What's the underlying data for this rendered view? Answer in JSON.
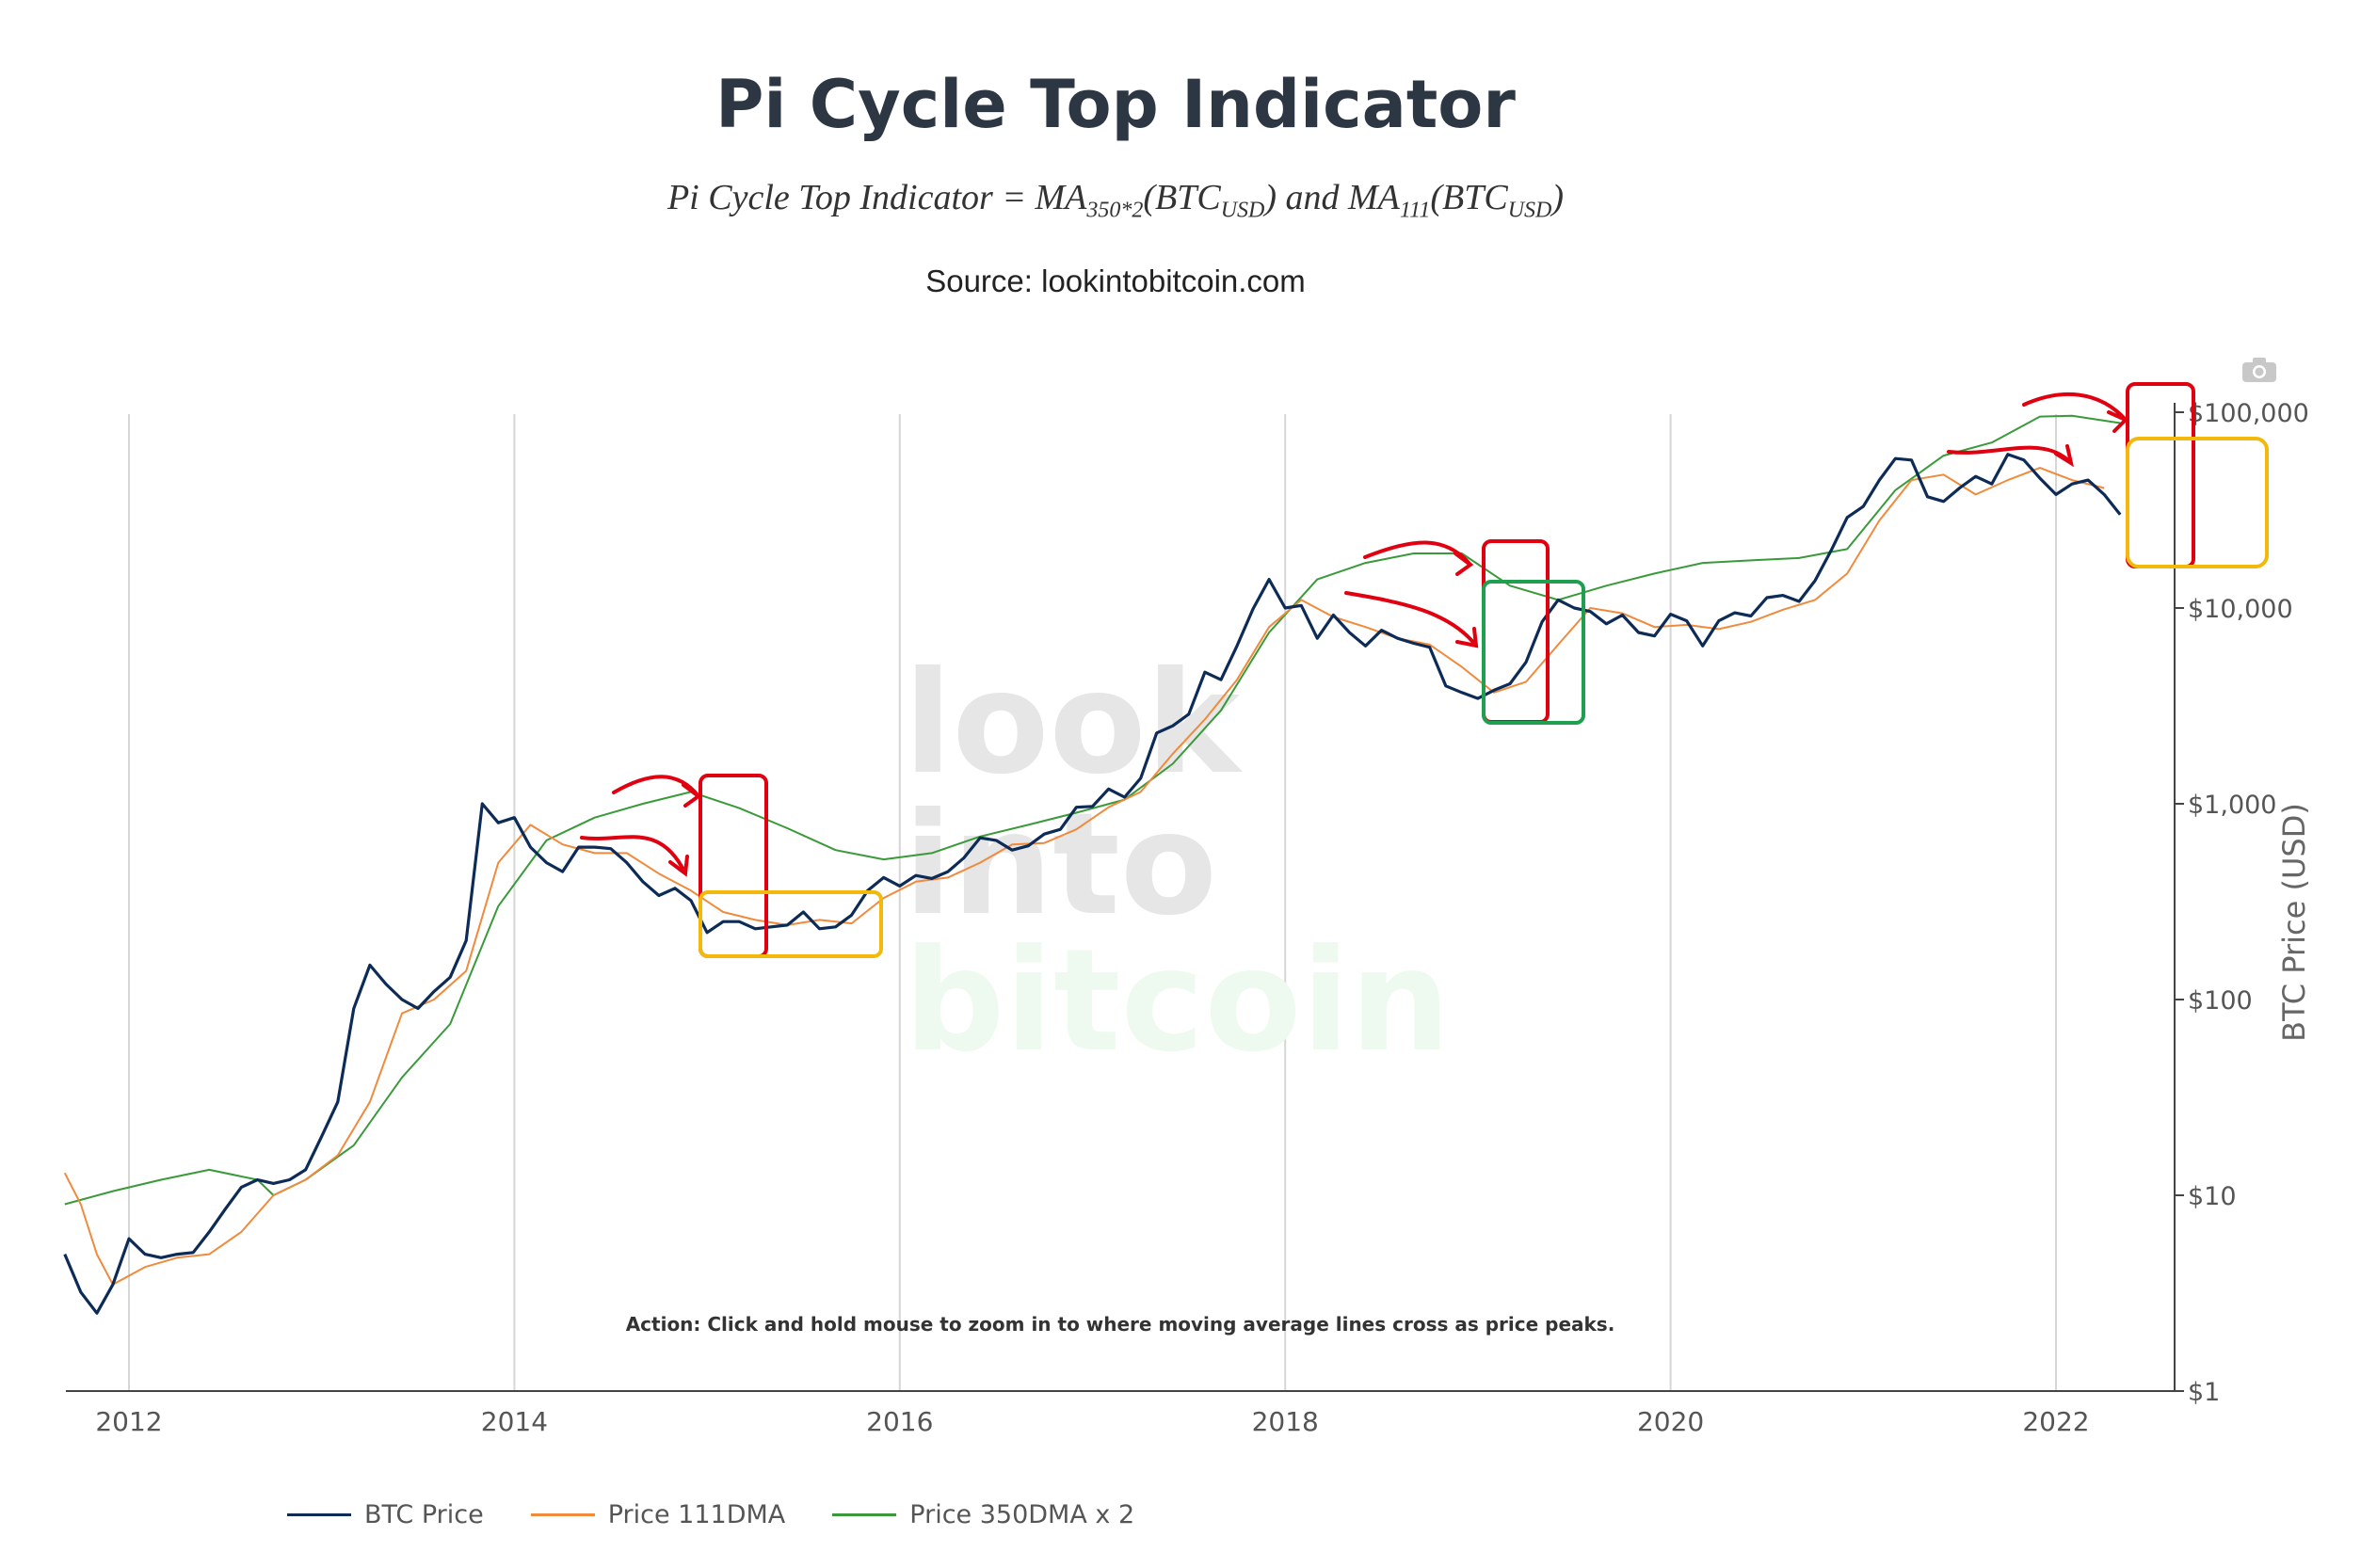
{
  "page": {
    "title": "Pi Cycle Top Indicator",
    "formula": {
      "lhs": "Pi Cycle Top Indicator",
      "ma1": "MA",
      "ma1_sub": "350*2",
      "arg1": "(BTC",
      "arg_sub": "USD",
      "close": ")",
      "conj": " and ",
      "ma2": "MA",
      "ma2_sub": "111",
      "arg2": "(BTC"
    },
    "source": "Source: lookintobitcoin.com",
    "watermark": [
      "look",
      "into",
      "bitcoin"
    ],
    "action_note": "Action: Click and hold mouse to zoom in to where moving average lines cross as price peaks.",
    "camera_icon": "camera-icon"
  },
  "chart_data": {
    "type": "line",
    "title": "Pi Cycle Top Indicator",
    "xlabel": "",
    "ylabel": "BTC Price (USD)",
    "y_scale": "log",
    "ylim": [
      1,
      100000
    ],
    "xlim": [
      "2011-09",
      "2022-09"
    ],
    "x_ticks": [
      "2012",
      "2014",
      "2016",
      "2018",
      "2020",
      "2022"
    ],
    "y_ticks": [
      "$1",
      "$10",
      "$100",
      "$1,000",
      "$10,000",
      "$100,000"
    ],
    "grid": "vertical",
    "legend_position": "bottom",
    "series": [
      {
        "name": "BTC Price",
        "color": "#0d2b57",
        "points": [
          [
            "2011-09",
            5.0
          ],
          [
            "2011-10",
            3.2
          ],
          [
            "2011-11",
            2.5
          ],
          [
            "2011-12",
            3.5
          ],
          [
            "2012-01",
            6.0
          ],
          [
            "2012-02",
            5.0
          ],
          [
            "2012-03",
            4.8
          ],
          [
            "2012-04",
            5.0
          ],
          [
            "2012-05",
            5.1
          ],
          [
            "2012-06",
            6.5
          ],
          [
            "2012-07",
            8.5
          ],
          [
            "2012-08",
            11.0
          ],
          [
            "2012-09",
            12.0
          ],
          [
            "2012-10",
            11.5
          ],
          [
            "2012-11",
            12.0
          ],
          [
            "2012-12",
            13.5
          ],
          [
            "2013-01",
            20.0
          ],
          [
            "2013-02",
            30.0
          ],
          [
            "2013-03",
            90.0
          ],
          [
            "2013-04",
            150.0
          ],
          [
            "2013-05",
            120.0
          ],
          [
            "2013-06",
            100.0
          ],
          [
            "2013-07",
            90.0
          ],
          [
            "2013-08",
            110.0
          ],
          [
            "2013-09",
            130.0
          ],
          [
            "2013-10",
            200.0
          ],
          [
            "2013-11",
            1000.0
          ],
          [
            "2013-12",
            800.0
          ],
          [
            "2014-01",
            850.0
          ],
          [
            "2014-02",
            600.0
          ],
          [
            "2014-03",
            500.0
          ],
          [
            "2014-04",
            450.0
          ],
          [
            "2014-05",
            600.0
          ],
          [
            "2014-06",
            600.0
          ],
          [
            "2014-07",
            590.0
          ],
          [
            "2014-08",
            500.0
          ],
          [
            "2014-09",
            400.0
          ],
          [
            "2014-10",
            340.0
          ],
          [
            "2014-11",
            370.0
          ],
          [
            "2014-12",
            320.0
          ],
          [
            "2015-01",
            220.0
          ],
          [
            "2015-02",
            250.0
          ],
          [
            "2015-03",
            250.0
          ],
          [
            "2015-04",
            230.0
          ],
          [
            "2015-05",
            235.0
          ],
          [
            "2015-06",
            240.0
          ],
          [
            "2015-07",
            280.0
          ],
          [
            "2015-08",
            230.0
          ],
          [
            "2015-09",
            235.0
          ],
          [
            "2015-10",
            270.0
          ],
          [
            "2015-11",
            360.0
          ],
          [
            "2015-12",
            420.0
          ],
          [
            "2016-01",
            380.0
          ],
          [
            "2016-02",
            430.0
          ],
          [
            "2016-03",
            415.0
          ],
          [
            "2016-04",
            450.0
          ],
          [
            "2016-05",
            530.0
          ],
          [
            "2016-06",
            670.0
          ],
          [
            "2016-07",
            650.0
          ],
          [
            "2016-08",
            580.0
          ],
          [
            "2016-09",
            610.0
          ],
          [
            "2016-10",
            700.0
          ],
          [
            "2016-11",
            740.0
          ],
          [
            "2016-12",
            960.0
          ],
          [
            "2017-01",
            970.0
          ],
          [
            "2017-02",
            1190.0
          ],
          [
            "2017-03",
            1080.0
          ],
          [
            "2017-04",
            1350.0
          ],
          [
            "2017-05",
            2300.0
          ],
          [
            "2017-06",
            2500.0
          ],
          [
            "2017-07",
            2870.0
          ],
          [
            "2017-08",
            4700.0
          ],
          [
            "2017-09",
            4300.0
          ],
          [
            "2017-10",
            6400.0
          ],
          [
            "2017-11",
            9900.0
          ],
          [
            "2017-12",
            14000.0
          ],
          [
            "2018-01",
            10000.0
          ],
          [
            "2018-02",
            10300.0
          ],
          [
            "2018-03",
            7000.0
          ],
          [
            "2018-04",
            9200.0
          ],
          [
            "2018-05",
            7500.0
          ],
          [
            "2018-06",
            6400.0
          ],
          [
            "2018-07",
            7700.0
          ],
          [
            "2018-08",
            7000.0
          ],
          [
            "2018-09",
            6600.0
          ],
          [
            "2018-10",
            6300.0
          ],
          [
            "2018-11",
            4000.0
          ],
          [
            "2018-12",
            3700.0
          ],
          [
            "2019-01",
            3450.0
          ],
          [
            "2019-02",
            3800.0
          ],
          [
            "2019-03",
            4100.0
          ],
          [
            "2019-04",
            5300.0
          ],
          [
            "2019-05",
            8500.0
          ],
          [
            "2019-06",
            11000.0
          ],
          [
            "2019-07",
            10000.0
          ],
          [
            "2019-08",
            9600.0
          ],
          [
            "2019-09",
            8300.0
          ],
          [
            "2019-10",
            9200.0
          ],
          [
            "2019-11",
            7500.0
          ],
          [
            "2019-12",
            7200.0
          ],
          [
            "2020-01",
            9300.0
          ],
          [
            "2020-02",
            8600.0
          ],
          [
            "2020-03",
            6400.0
          ],
          [
            "2020-04",
            8600.0
          ],
          [
            "2020-05",
            9450.0
          ],
          [
            "2020-06",
            9100.0
          ],
          [
            "2020-07",
            11300.0
          ],
          [
            "2020-08",
            11600.0
          ],
          [
            "2020-09",
            10800.0
          ],
          [
            "2020-10",
            13800.0
          ],
          [
            "2020-11",
            19700.0
          ],
          [
            "2020-12",
            29000.0
          ],
          [
            "2021-01",
            33000.0
          ],
          [
            "2021-02",
            45000.0
          ],
          [
            "2021-03",
            58000.0
          ],
          [
            "2021-04",
            57000.0
          ],
          [
            "2021-05",
            37000.0
          ],
          [
            "2021-06",
            35000.0
          ],
          [
            "2021-07",
            41000.0
          ],
          [
            "2021-08",
            47000.0
          ],
          [
            "2021-09",
            43000.0
          ],
          [
            "2021-10",
            61000.0
          ],
          [
            "2021-11",
            57000.0
          ],
          [
            "2021-12",
            46000.0
          ],
          [
            "2022-01",
            38000.0
          ],
          [
            "2022-02",
            43000.0
          ],
          [
            "2022-03",
            45000.0
          ],
          [
            "2022-04",
            38000.0
          ],
          [
            "2022-05",
            30000.0
          ]
        ]
      },
      {
        "name": "Price 111DMA",
        "color": "#f08a3c",
        "points": [
          [
            "2011-09",
            13.0
          ],
          [
            "2011-10",
            9.0
          ],
          [
            "2011-11",
            5.0
          ],
          [
            "2011-12",
            3.5
          ],
          [
            "2012-02",
            4.3
          ],
          [
            "2012-04",
            4.8
          ],
          [
            "2012-06",
            5.0
          ],
          [
            "2012-08",
            6.5
          ],
          [
            "2012-10",
            10.0
          ],
          [
            "2012-12",
            12.0
          ],
          [
            "2013-02",
            16.0
          ],
          [
            "2013-04",
            30.0
          ],
          [
            "2013-06",
            85.0
          ],
          [
            "2013-08",
            100.0
          ],
          [
            "2013-10",
            140.0
          ],
          [
            "2013-12",
            500.0
          ],
          [
            "2014-02",
            780.0
          ],
          [
            "2014-04",
            620.0
          ],
          [
            "2014-06",
            560.0
          ],
          [
            "2014-08",
            560.0
          ],
          [
            "2014-10",
            440.0
          ],
          [
            "2014-12",
            360.0
          ],
          [
            "2015-02",
            280.0
          ],
          [
            "2015-04",
            255.0
          ],
          [
            "2015-06",
            240.0
          ],
          [
            "2015-08",
            255.0
          ],
          [
            "2015-10",
            245.0
          ],
          [
            "2015-12",
            330.0
          ],
          [
            "2016-02",
            400.0
          ],
          [
            "2016-04",
            420.0
          ],
          [
            "2016-06",
            500.0
          ],
          [
            "2016-08",
            620.0
          ],
          [
            "2016-10",
            630.0
          ],
          [
            "2016-12",
            740.0
          ],
          [
            "2017-02",
            960.0
          ],
          [
            "2017-04",
            1150.0
          ],
          [
            "2017-06",
            1800.0
          ],
          [
            "2017-08",
            2700.0
          ],
          [
            "2017-10",
            4300.0
          ],
          [
            "2017-12",
            8000.0
          ],
          [
            "2018-02",
            11000.0
          ],
          [
            "2018-04",
            9000.0
          ],
          [
            "2018-06",
            8000.0
          ],
          [
            "2018-08",
            7000.0
          ],
          [
            "2018-10",
            6500.0
          ],
          [
            "2018-12",
            5000.0
          ],
          [
            "2019-02",
            3700.0
          ],
          [
            "2019-04",
            4200.0
          ],
          [
            "2019-06",
            6500.0
          ],
          [
            "2019-08",
            10000.0
          ],
          [
            "2019-10",
            9400.0
          ],
          [
            "2019-12",
            8000.0
          ],
          [
            "2020-02",
            8200.0
          ],
          [
            "2020-04",
            7800.0
          ],
          [
            "2020-06",
            8500.0
          ],
          [
            "2020-08",
            9800.0
          ],
          [
            "2020-10",
            11000.0
          ],
          [
            "2020-12",
            15000.0
          ],
          [
            "2021-02",
            28000.0
          ],
          [
            "2021-04",
            45000.0
          ],
          [
            "2021-06",
            48000.0
          ],
          [
            "2021-08",
            38000.0
          ],
          [
            "2021-10",
            45000.0
          ],
          [
            "2021-12",
            52000.0
          ],
          [
            "2022-02",
            45000.0
          ],
          [
            "2022-04",
            41000.0
          ]
        ]
      },
      {
        "name": "Price 350DMA x 2",
        "color": "#3a9a3a",
        "points": [
          [
            "2011-09",
            9.0
          ],
          [
            "2011-12",
            10.5
          ],
          [
            "2012-03",
            12.0
          ],
          [
            "2012-06",
            13.5
          ],
          [
            "2012-09",
            12.0
          ],
          [
            "2012-10",
            10.0
          ],
          [
            "2012-12",
            12.0
          ],
          [
            "2013-03",
            18.0
          ],
          [
            "2013-06",
            40.0
          ],
          [
            "2013-09",
            75.0
          ],
          [
            "2013-12",
            300.0
          ],
          [
            "2014-03",
            650.0
          ],
          [
            "2014-06",
            850.0
          ],
          [
            "2014-09",
            1000.0
          ],
          [
            "2014-12",
            1150.0
          ],
          [
            "2015-03",
            950.0
          ],
          [
            "2015-06",
            750.0
          ],
          [
            "2015-09",
            580.0
          ],
          [
            "2015-12",
            520.0
          ],
          [
            "2016-03",
            560.0
          ],
          [
            "2016-06",
            680.0
          ],
          [
            "2016-09",
            780.0
          ],
          [
            "2016-12",
            900.0
          ],
          [
            "2017-03",
            1050.0
          ],
          [
            "2017-06",
            1600.0
          ],
          [
            "2017-09",
            3000.0
          ],
          [
            "2017-12",
            7500.0
          ],
          [
            "2018-03",
            14000.0
          ],
          [
            "2018-06",
            17000.0
          ],
          [
            "2018-09",
            19000.0
          ],
          [
            "2018-12",
            19000.0
          ],
          [
            "2019-03",
            13000.0
          ],
          [
            "2019-06",
            11000.0
          ],
          [
            "2019-09",
            13000.0
          ],
          [
            "2019-12",
            15000.0
          ],
          [
            "2020-03",
            17000.0
          ],
          [
            "2020-06",
            17500.0
          ],
          [
            "2020-09",
            18000.0
          ],
          [
            "2020-12",
            20000.0
          ],
          [
            "2021-03",
            40000.0
          ],
          [
            "2021-06",
            60000.0
          ],
          [
            "2021-09",
            70000.0
          ],
          [
            "2021-12",
            95000.0
          ],
          [
            "2022-02",
            96000.0
          ],
          [
            "2022-05",
            88000.0
          ]
        ]
      }
    ]
  }
}
